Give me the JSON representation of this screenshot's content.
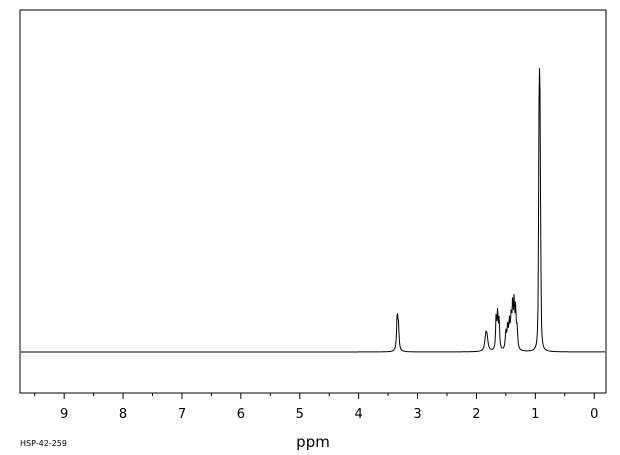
{
  "chart_data": {
    "type": "line",
    "title": "",
    "xlabel": "ppm",
    "ylabel": "",
    "spectrum_code": "HSP-42-259",
    "x_reversed": true,
    "xlim": [
      9.75,
      -0.2
    ],
    "ylim": [
      -0.12,
      1.0
    ],
    "grid": false,
    "major_ticks": [
      9,
      8,
      7,
      6,
      5,
      4,
      3,
      2,
      1,
      0
    ],
    "minor_tick_step": 0.5,
    "line_color": "#000000",
    "peaks": [
      {
        "ppm": 3.345,
        "height": 0.1,
        "width": 0.012
      },
      {
        "ppm": 3.325,
        "height": 0.07,
        "width": 0.012
      },
      {
        "ppm": 1.84,
        "height": 0.042,
        "width": 0.02
      },
      {
        "ppm": 1.82,
        "height": 0.032,
        "width": 0.02
      },
      {
        "ppm": 1.665,
        "height": 0.1,
        "width": 0.01
      },
      {
        "ppm": 1.64,
        "height": 0.105,
        "width": 0.01
      },
      {
        "ppm": 1.615,
        "height": 0.085,
        "width": 0.01
      },
      {
        "ppm": 1.5,
        "height": 0.05,
        "width": 0.012
      },
      {
        "ppm": 1.47,
        "height": 0.065,
        "width": 0.012
      },
      {
        "ppm": 1.44,
        "height": 0.075,
        "width": 0.012
      },
      {
        "ppm": 1.41,
        "height": 0.09,
        "width": 0.012
      },
      {
        "ppm": 1.385,
        "height": 0.12,
        "width": 0.01
      },
      {
        "ppm": 1.36,
        "height": 0.13,
        "width": 0.01
      },
      {
        "ppm": 1.335,
        "height": 0.11,
        "width": 0.01
      },
      {
        "ppm": 1.31,
        "height": 0.06,
        "width": 0.012
      },
      {
        "ppm": 0.94,
        "height": 0.62,
        "width": 0.006
      },
      {
        "ppm": 0.925,
        "height": 0.97,
        "width": 0.006
      },
      {
        "ppm": 0.91,
        "height": 0.3,
        "width": 0.006
      }
    ]
  }
}
